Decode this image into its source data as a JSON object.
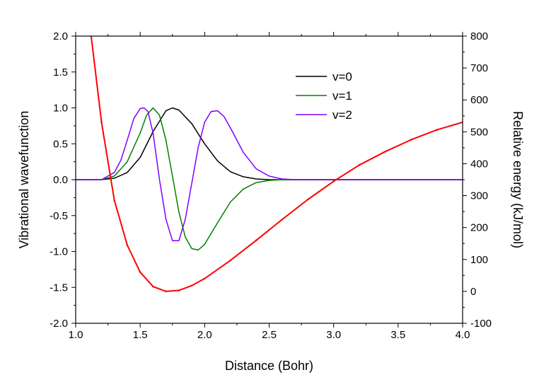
{
  "chart_data": {
    "type": "line",
    "title": "",
    "xlabel": "Distance (Bohr)",
    "ylabel_left": "Vibrational wavefunction",
    "ylabel_right": "Relative energy (kJ/mol)",
    "xlim": [
      1.0,
      4.0
    ],
    "ylim_left": [
      -2.0,
      2.0
    ],
    "ylim_right": [
      -100,
      800
    ],
    "x_ticks": [
      "1.0",
      "1.5",
      "2.0",
      "2.5",
      "3.0",
      "3.5",
      "4.0"
    ],
    "y_left_ticks": [
      "-2.0",
      "-1.5",
      "-1.0",
      "-0.5",
      "0.0",
      "0.5",
      "1.0",
      "1.5",
      "2.0"
    ],
    "y_right_ticks": [
      "-100",
      "0",
      "100",
      "200",
      "300",
      "400",
      "500",
      "600",
      "700",
      "800"
    ],
    "grid": false,
    "legend_position": "top-right",
    "series": [
      {
        "name": "v=0",
        "axis": "left",
        "color": "#000000",
        "x": [
          1.0,
          1.2,
          1.3,
          1.4,
          1.5,
          1.6,
          1.7,
          1.75,
          1.8,
          1.9,
          2.0,
          2.1,
          2.2,
          2.3,
          2.4,
          2.5,
          2.6,
          2.8,
          3.0,
          3.5,
          4.0
        ],
        "y": [
          0.0,
          0.0,
          0.02,
          0.1,
          0.31,
          0.67,
          0.96,
          1.0,
          0.97,
          0.78,
          0.5,
          0.26,
          0.11,
          0.04,
          0.01,
          0.0,
          0.0,
          0.0,
          0.0,
          0.0,
          0.0
        ]
      },
      {
        "name": "v=1",
        "axis": "left",
        "color": "#008000",
        "x": [
          1.0,
          1.2,
          1.3,
          1.4,
          1.5,
          1.55,
          1.6,
          1.65,
          1.7,
          1.75,
          1.8,
          1.85,
          1.9,
          1.95,
          2.0,
          2.1,
          2.2,
          2.3,
          2.4,
          2.5,
          2.6,
          2.7,
          2.8,
          3.0,
          4.0
        ],
        "y": [
          0.0,
          0.0,
          0.05,
          0.25,
          0.65,
          0.9,
          1.0,
          0.9,
          0.55,
          0.05,
          -0.45,
          -0.8,
          -0.96,
          -0.98,
          -0.9,
          -0.6,
          -0.31,
          -0.13,
          -0.04,
          -0.01,
          0.0,
          0.0,
          0.0,
          0.0,
          0.0
        ]
      },
      {
        "name": "v=2",
        "axis": "left",
        "color": "#8000FF",
        "x": [
          1.0,
          1.2,
          1.3,
          1.35,
          1.4,
          1.45,
          1.5,
          1.53,
          1.56,
          1.6,
          1.65,
          1.7,
          1.75,
          1.8,
          1.85,
          1.9,
          1.95,
          2.0,
          2.05,
          2.1,
          2.15,
          2.2,
          2.3,
          2.4,
          2.5,
          2.6,
          2.7,
          2.8,
          3.0,
          4.0
        ],
        "y": [
          0.0,
          0.0,
          0.1,
          0.27,
          0.55,
          0.85,
          0.99,
          1.0,
          0.95,
          0.65,
          0.0,
          -0.55,
          -0.85,
          -0.85,
          -0.55,
          -0.05,
          0.45,
          0.8,
          0.95,
          0.96,
          0.88,
          0.72,
          0.38,
          0.15,
          0.05,
          0.01,
          0.0,
          0.0,
          0.0,
          0.0
        ]
      },
      {
        "name": "",
        "axis": "right",
        "color": "#FF0000",
        "x": [
          1.12,
          1.2,
          1.3,
          1.4,
          1.5,
          1.6,
          1.7,
          1.8,
          1.9,
          2.0,
          2.2,
          2.4,
          2.6,
          2.8,
          3.0,
          3.2,
          3.4,
          3.6,
          3.8,
          4.0
        ],
        "y": [
          800,
          530,
          285,
          145,
          60,
          15,
          0,
          3,
          18,
          40,
          97,
          160,
          225,
          288,
          345,
          396,
          438,
          475,
          506,
          530
        ]
      }
    ]
  }
}
